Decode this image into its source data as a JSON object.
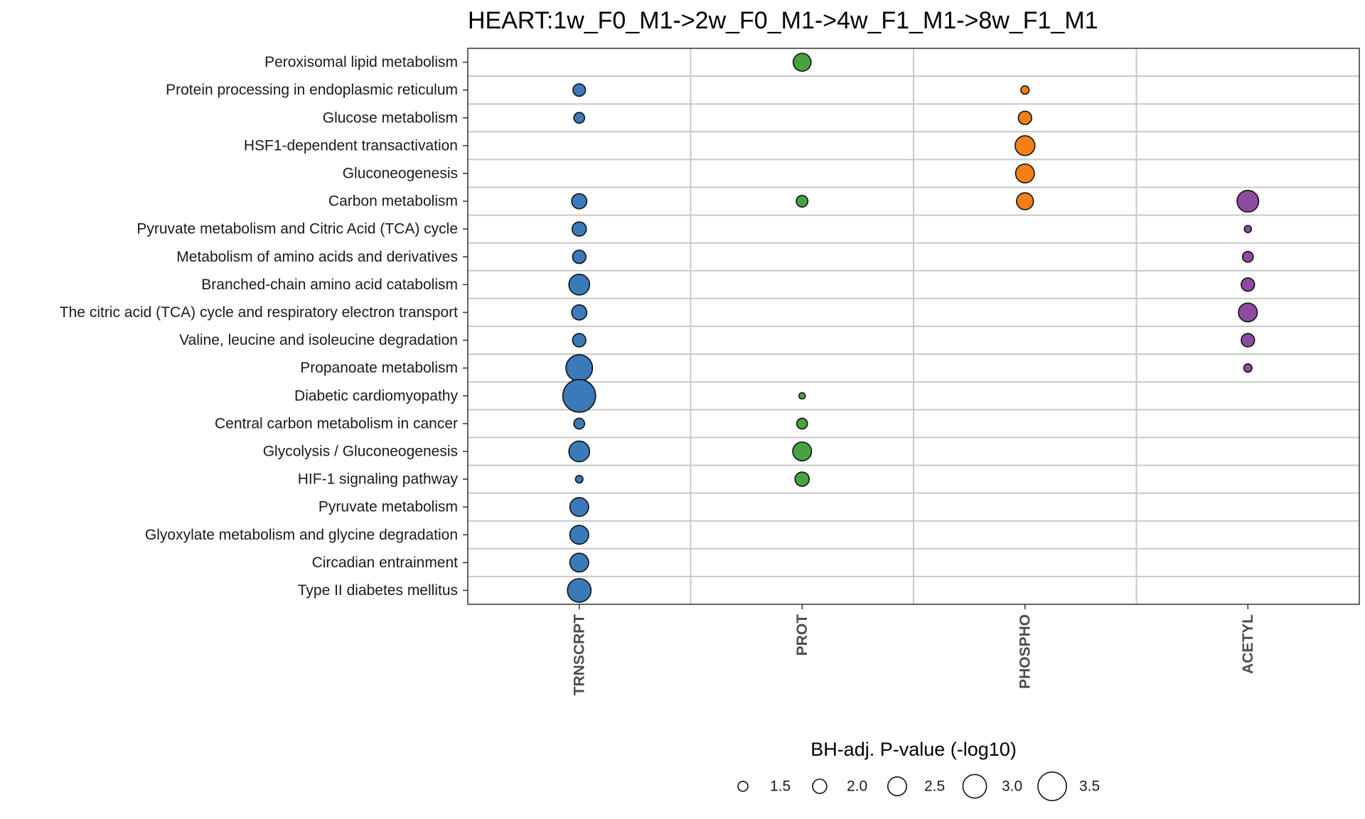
{
  "chart_data": {
    "type": "scatter",
    "title": "HEART:1w_F0_M1->2w_F0_M1->4w_F1_M1->8w_F1_M1",
    "xlabel": "",
    "ylabel": "",
    "grid": true,
    "legend_position": "bottom",
    "size_legend": {
      "title": "BH-adj. P-value (-log10)",
      "values": [
        1.5,
        2.0,
        2.5,
        3.0,
        3.5
      ],
      "labels": [
        "1.5",
        "2.0",
        "2.5",
        "3.0",
        "3.5"
      ]
    },
    "categories_x": [
      "TRNSCRPT",
      "PROT",
      "PHOSPHO",
      "ACETYL"
    ],
    "colors": {
      "TRNSCRPT": "#3a7ab8",
      "PROT": "#47a341",
      "PHOSPHO": "#f57f17",
      "ACETYL": "#8e4a9e"
    },
    "categories_y": [
      "Peroxisomal lipid metabolism",
      "Protein processing in endoplasmic reticulum",
      "Glucose metabolism",
      "HSF1-dependent transactivation",
      "Gluconeogenesis",
      "Carbon metabolism",
      "Pyruvate metabolism and Citric Acid (TCA) cycle",
      "Metabolism of amino acids and derivatives",
      "Branched-chain amino acid catabolism",
      "The citric acid (TCA) cycle and respiratory electron transport",
      "Valine, leucine and isoleucine degradation",
      "Propanoate metabolism",
      "Diabetic cardiomyopathy",
      "Central carbon metabolism in cancer",
      "Glycolysis / Gluconeogenesis",
      "HIF-1 signaling pathway",
      "Pyruvate metabolism",
      "Glyoxylate metabolism and glycine degradation",
      "Circadian entrainment",
      "Type II diabetes mellitus"
    ],
    "points": [
      {
        "y": "Peroxisomal lipid metabolism",
        "x": "PROT",
        "value": 2.4
      },
      {
        "y": "Protein processing in endoplasmic reticulum",
        "x": "TRNSCRPT",
        "value": 1.8
      },
      {
        "y": "Protein processing in endoplasmic reticulum",
        "x": "PHOSPHO",
        "value": 1.3
      },
      {
        "y": "Glucose metabolism",
        "x": "TRNSCRPT",
        "value": 1.6
      },
      {
        "y": "Glucose metabolism",
        "x": "PHOSPHO",
        "value": 1.9
      },
      {
        "y": "HSF1-dependent transactivation",
        "x": "PHOSPHO",
        "value": 2.6
      },
      {
        "y": "Gluconeogenesis",
        "x": "PHOSPHO",
        "value": 2.5
      },
      {
        "y": "Carbon metabolism",
        "x": "TRNSCRPT",
        "value": 2.1
      },
      {
        "y": "Carbon metabolism",
        "x": "PROT",
        "value": 1.7
      },
      {
        "y": "Carbon metabolism",
        "x": "PHOSPHO",
        "value": 2.3
      },
      {
        "y": "Carbon metabolism",
        "x": "ACETYL",
        "value": 2.8
      },
      {
        "y": "Pyruvate metabolism and Citric Acid (TCA) cycle",
        "x": "TRNSCRPT",
        "value": 2.0
      },
      {
        "y": "Pyruvate metabolism and Citric Acid (TCA) cycle",
        "x": "ACETYL",
        "value": 1.15
      },
      {
        "y": "Metabolism of amino acids and derivatives",
        "x": "TRNSCRPT",
        "value": 1.9
      },
      {
        "y": "Metabolism of amino acids and derivatives",
        "x": "ACETYL",
        "value": 1.6
      },
      {
        "y": "Branched-chain amino acid catabolism",
        "x": "TRNSCRPT",
        "value": 2.7
      },
      {
        "y": "Branched-chain amino acid catabolism",
        "x": "ACETYL",
        "value": 1.9
      },
      {
        "y": "The citric acid (TCA) cycle and respiratory electron transport",
        "x": "TRNSCRPT",
        "value": 2.1
      },
      {
        "y": "The citric acid (TCA) cycle and respiratory electron transport",
        "x": "ACETYL",
        "value": 2.5
      },
      {
        "y": "Valine, leucine and isoleucine degradation",
        "x": "TRNSCRPT",
        "value": 1.9
      },
      {
        "y": "Valine, leucine and isoleucine degradation",
        "x": "ACETYL",
        "value": 1.9
      },
      {
        "y": "Propanoate metabolism",
        "x": "TRNSCRPT",
        "value": 3.3
      },
      {
        "y": "Propanoate metabolism",
        "x": "ACETYL",
        "value": 1.3
      },
      {
        "y": "Diabetic cardiomyopathy",
        "x": "TRNSCRPT",
        "value": 3.9
      },
      {
        "y": "Diabetic cardiomyopathy",
        "x": "PROT",
        "value": 1.05
      },
      {
        "y": "Central carbon metabolism in cancer",
        "x": "TRNSCRPT",
        "value": 1.6
      },
      {
        "y": "Central carbon metabolism in cancer",
        "x": "PROT",
        "value": 1.6
      },
      {
        "y": "Glycolysis / Gluconeogenesis",
        "x": "TRNSCRPT",
        "value": 2.7
      },
      {
        "y": "Glycolysis / Gluconeogenesis",
        "x": "PROT",
        "value": 2.5
      },
      {
        "y": "HIF-1 signaling pathway",
        "x": "TRNSCRPT",
        "value": 1.2
      },
      {
        "y": "HIF-1 signaling pathway",
        "x": "PROT",
        "value": 2.0
      },
      {
        "y": "Pyruvate metabolism",
        "x": "TRNSCRPT",
        "value": 2.5
      },
      {
        "y": "Glyoxylate metabolism and glycine degradation",
        "x": "TRNSCRPT",
        "value": 2.5
      },
      {
        "y": "Circadian entrainment",
        "x": "TRNSCRPT",
        "value": 2.5
      },
      {
        "y": "Type II diabetes mellitus",
        "x": "TRNSCRPT",
        "value": 3.0
      }
    ]
  }
}
